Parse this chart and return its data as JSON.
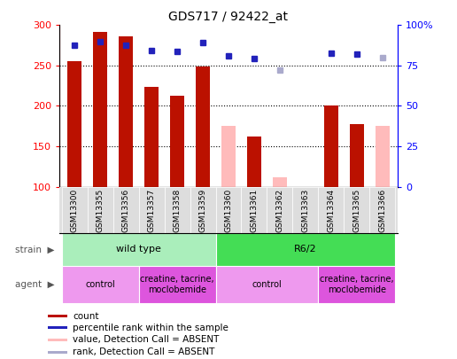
{
  "title": "GDS717 / 92422_at",
  "samples": [
    "GSM13300",
    "GSM13355",
    "GSM13356",
    "GSM13357",
    "GSM13358",
    "GSM13359",
    "GSM13360",
    "GSM13361",
    "GSM13362",
    "GSM13363",
    "GSM13364",
    "GSM13365",
    "GSM13366"
  ],
  "bar_values": [
    255,
    292,
    286,
    224,
    213,
    249,
    null,
    162,
    null,
    null,
    201,
    178,
    null
  ],
  "bar_values_absent": [
    null,
    null,
    null,
    null,
    null,
    null,
    175,
    null,
    112,
    null,
    null,
    null,
    175
  ],
  "rank_values": [
    275,
    280,
    275,
    269,
    268,
    278,
    262,
    259,
    null,
    null,
    265,
    264,
    null
  ],
  "rank_values_absent": [
    null,
    null,
    null,
    null,
    null,
    null,
    null,
    null,
    244,
    null,
    null,
    null,
    260
  ],
  "ylim_left": [
    100,
    300
  ],
  "ylim_right": [
    0,
    100
  ],
  "yticks_left": [
    100,
    150,
    200,
    250,
    300
  ],
  "yticks_right": [
    0,
    25,
    50,
    75,
    100
  ],
  "ytick_labels_right": [
    "0",
    "25",
    "50",
    "75",
    "100%"
  ],
  "bar_color_present": "#bb1100",
  "bar_color_absent": "#ffbbbb",
  "rank_color_present": "#2222bb",
  "rank_color_absent": "#aaaacc",
  "strain_groups": [
    {
      "label": "wild type",
      "start": 0,
      "end": 6,
      "color": "#aaeebb"
    },
    {
      "label": "R6/2",
      "start": 6,
      "end": 13,
      "color": "#44dd55"
    }
  ],
  "agent_groups": [
    {
      "label": "control",
      "start": 0,
      "end": 3,
      "color": "#ee99ee"
    },
    {
      "label": "creatine, tacrine,\nmoclobemide",
      "start": 3,
      "end": 6,
      "color": "#dd55dd"
    },
    {
      "label": "control",
      "start": 6,
      "end": 10,
      "color": "#ee99ee"
    },
    {
      "label": "creatine, tacrine,\nmoclobemide",
      "start": 10,
      "end": 13,
      "color": "#dd55dd"
    }
  ],
  "legend_items": [
    {
      "label": "count",
      "color": "#bb1100"
    },
    {
      "label": "percentile rank within the sample",
      "color": "#2222bb"
    },
    {
      "label": "value, Detection Call = ABSENT",
      "color": "#ffbbbb"
    },
    {
      "label": "rank, Detection Call = ABSENT",
      "color": "#aaaacc"
    }
  ]
}
